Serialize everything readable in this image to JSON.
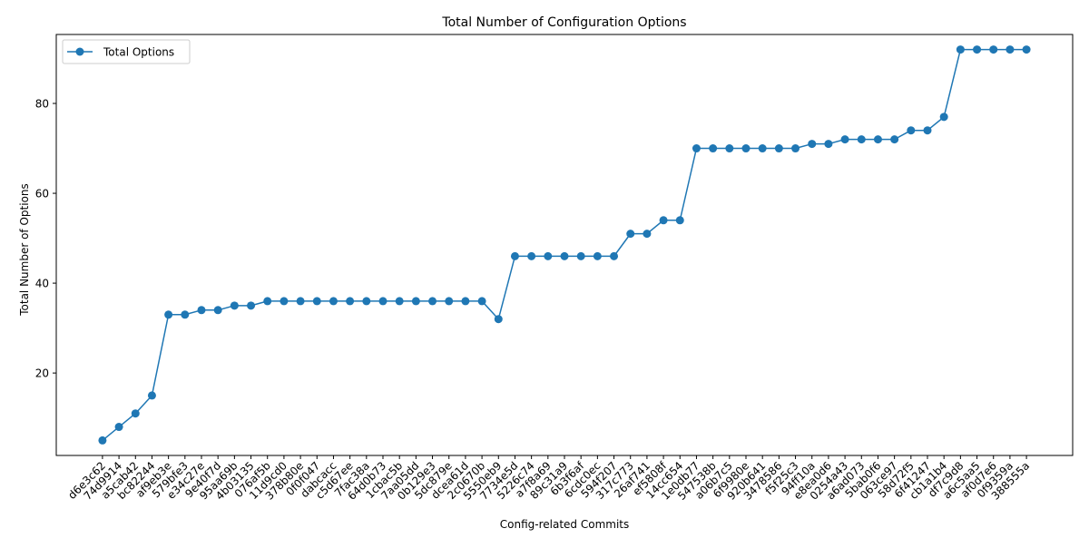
{
  "chart_data": {
    "type": "line",
    "title": "Total Number of Configuration Options",
    "xlabel": "Config-related Commits",
    "ylabel": "Total Number of Options",
    "categories": [
      "d6e3c62",
      "74d9914",
      "a5cab42",
      "bc82244",
      "af9eb3e",
      "579bfe3",
      "e34c27e",
      "9e40f7d",
      "95aa69b",
      "4b03135",
      "076af5b",
      "11d9cd0",
      "378b80e",
      "0f0f047",
      "dabcacc",
      "c5d67ee",
      "7fac38a",
      "64d0b73",
      "1cbac5b",
      "7aa05dd",
      "0b129e3",
      "5dc879e",
      "dcea61d",
      "2c0670b",
      "5550eb9",
      "7734e5d",
      "5226c74",
      "a7f8a69",
      "89c31a9",
      "6b3f6af",
      "6cdc0ec",
      "594f207",
      "317c773",
      "26af741",
      "ef5808f",
      "14cc654",
      "1e0db77",
      "547538b",
      "a06b7c5",
      "6f9980e",
      "920b641",
      "3478586",
      "f5f25c3",
      "94ff10a",
      "e8ea0d6",
      "0254a43",
      "a6ad073",
      "5bab0f6",
      "063ce97",
      "58d72f5",
      "6f41247",
      "cb1a1b4",
      "df7c9d8",
      "a6c5aa5",
      "af0d7e6",
      "0f9359a",
      "388555a"
    ],
    "series": [
      {
        "name": "Total Options",
        "color": "#1f77b4",
        "marker": "circle",
        "values": [
          5,
          8,
          11,
          15,
          33,
          33,
          34,
          34,
          35,
          35,
          36,
          36,
          36,
          36,
          36,
          36,
          36,
          36,
          36,
          36,
          36,
          36,
          36,
          36,
          32,
          46,
          46,
          46,
          46,
          46,
          46,
          46,
          51,
          51,
          54,
          54,
          70,
          70,
          70,
          70,
          70,
          70,
          70,
          71,
          71,
          72,
          72,
          72,
          72,
          74,
          74,
          77,
          92,
          92,
          92,
          92,
          92
        ]
      }
    ],
    "ylim": [
      1.65,
      95.35
    ],
    "yticks": [
      20,
      40,
      60,
      80
    ],
    "grid": false,
    "legend": "top-left"
  }
}
